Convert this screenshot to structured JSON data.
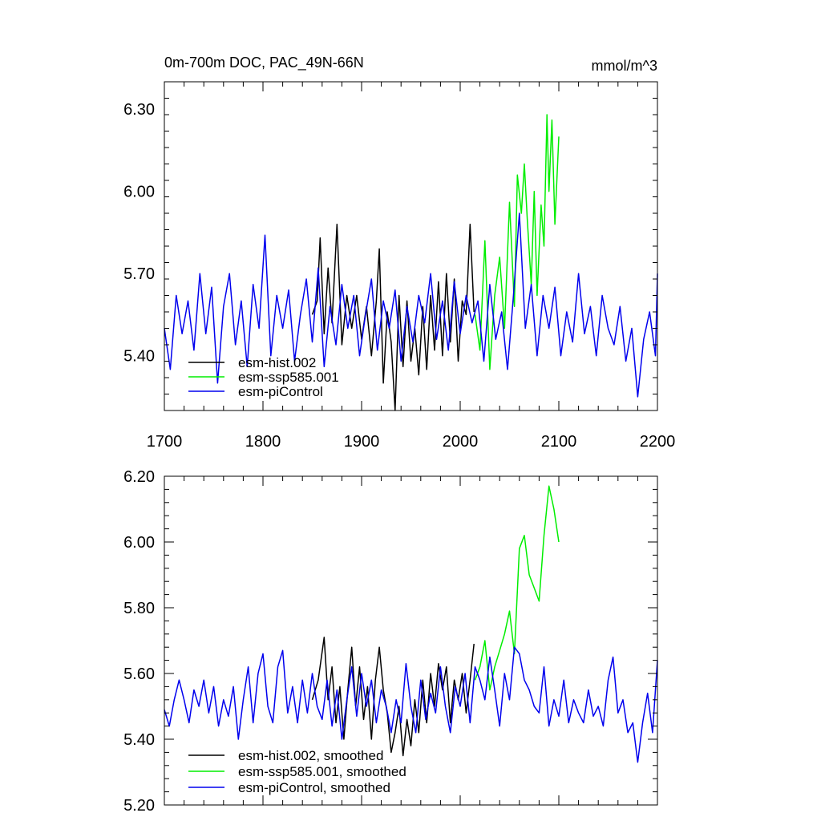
{
  "chart_data": [
    {
      "type": "line",
      "title_left": "0m-700m DOC, PAC_49N-66N",
      "title_right": "mmol/m^3",
      "xlim": [
        1700,
        2200
      ],
      "ylim": [
        5.2,
        6.4
      ],
      "x_ticks": [
        {
          "value": 1700,
          "label": "1700"
        },
        {
          "value": 1800,
          "label": "1800"
        },
        {
          "value": 1900,
          "label": "1900"
        },
        {
          "value": 2000,
          "label": "2000"
        },
        {
          "value": 2100,
          "label": "2100"
        },
        {
          "value": 2200,
          "label": "2200"
        }
      ],
      "y_ticks": [
        {
          "value": 5.4,
          "label": "5.40"
        },
        {
          "value": 5.7,
          "label": "5.70"
        },
        {
          "value": 6.0,
          "label": "6.00"
        },
        {
          "value": 6.3,
          "label": "6.30"
        }
      ],
      "legend_position": "bottom-left",
      "series": [
        {
          "name": "esm-hist.002",
          "color": "#000000",
          "x": [
            1850,
            1855,
            1858,
            1862,
            1866,
            1870,
            1875,
            1880,
            1885,
            1890,
            1895,
            1900,
            1905,
            1910,
            1915,
            1918,
            1922,
            1926,
            1930,
            1934,
            1938,
            1942,
            1946,
            1950,
            1954,
            1958,
            1962,
            1966,
            1970,
            1974,
            1978,
            1982,
            1986,
            1990,
            1994,
            1998,
            2002,
            2006,
            2010,
            2014
          ],
          "y": [
            5.55,
            5.6,
            5.83,
            5.48,
            5.72,
            5.52,
            5.88,
            5.44,
            5.62,
            5.5,
            5.62,
            5.46,
            5.58,
            5.4,
            5.6,
            5.79,
            5.3,
            5.56,
            5.45,
            5.2,
            5.62,
            5.36,
            5.6,
            5.38,
            5.5,
            5.33,
            5.58,
            5.35,
            5.62,
            5.42,
            5.67,
            5.4,
            5.7,
            5.45,
            5.68,
            5.38,
            5.6,
            5.55,
            5.88,
            5.56
          ]
        },
        {
          "name": "esm-ssp585.001",
          "color": "#00ee00",
          "x": [
            2015,
            2020,
            2025,
            2030,
            2035,
            2040,
            2045,
            2050,
            2055,
            2058,
            2062,
            2065,
            2068,
            2072,
            2075,
            2078,
            2082,
            2085,
            2088,
            2090,
            2093,
            2096,
            2100
          ],
          "y": [
            5.55,
            5.42,
            5.82,
            5.35,
            5.62,
            5.76,
            5.5,
            5.96,
            5.58,
            6.06,
            5.92,
            6.1,
            5.9,
            5.66,
            6.0,
            5.62,
            5.95,
            5.8,
            6.28,
            6.0,
            6.26,
            5.88,
            6.2
          ]
        },
        {
          "name": "esm-piControl",
          "color": "#0000ee",
          "x": [
            1700,
            1706,
            1712,
            1718,
            1724,
            1730,
            1736,
            1742,
            1748,
            1754,
            1760,
            1766,
            1772,
            1778,
            1784,
            1790,
            1796,
            1802,
            1808,
            1814,
            1820,
            1826,
            1832,
            1838,
            1844,
            1850,
            1856,
            1862,
            1868,
            1874,
            1880,
            1886,
            1892,
            1898,
            1904,
            1910,
            1916,
            1922,
            1928,
            1934,
            1940,
            1946,
            1952,
            1958,
            1964,
            1970,
            1976,
            1982,
            1988,
            1994,
            2000,
            2006,
            2012,
            2018,
            2024,
            2030,
            2036,
            2042,
            2048,
            2054,
            2060,
            2066,
            2072,
            2078,
            2084,
            2090,
            2096,
            2102,
            2108,
            2114,
            2120,
            2126,
            2132,
            2138,
            2144,
            2150,
            2156,
            2162,
            2168,
            2174,
            2180,
            2186,
            2192,
            2198,
            2200
          ],
          "y": [
            5.5,
            5.35,
            5.62,
            5.48,
            5.6,
            5.42,
            5.7,
            5.48,
            5.65,
            5.3,
            5.58,
            5.7,
            5.44,
            5.6,
            5.36,
            5.66,
            5.5,
            5.84,
            5.4,
            5.62,
            5.5,
            5.64,
            5.38,
            5.55,
            5.68,
            5.45,
            5.72,
            5.36,
            5.58,
            5.44,
            5.66,
            5.5,
            5.62,
            5.4,
            5.55,
            5.68,
            5.42,
            5.6,
            5.5,
            5.64,
            5.38,
            5.58,
            5.45,
            5.62,
            5.52,
            5.7,
            5.46,
            5.6,
            5.42,
            5.67,
            5.48,
            5.62,
            5.52,
            5.6,
            5.38,
            5.66,
            5.46,
            5.56,
            5.35,
            5.62,
            5.92,
            5.5,
            5.66,
            5.4,
            5.62,
            5.5,
            5.65,
            5.4,
            5.56,
            5.45,
            5.7,
            5.48,
            5.58,
            5.4,
            5.62,
            5.5,
            5.44,
            5.58,
            5.38,
            5.5,
            5.25,
            5.46,
            5.56,
            5.4,
            5.7
          ]
        }
      ]
    },
    {
      "type": "line",
      "xlim": [
        1700,
        2200
      ],
      "ylim": [
        5.2,
        6.2
      ],
      "y_ticks": [
        {
          "value": 5.2,
          "label": "5.20"
        },
        {
          "value": 5.4,
          "label": "5.40"
        },
        {
          "value": 5.6,
          "label": "5.60"
        },
        {
          "value": 5.8,
          "label": "5.80"
        },
        {
          "value": 6.0,
          "label": "6.00"
        },
        {
          "value": 6.2,
          "label": "6.20"
        }
      ],
      "legend_position": "bottom-left",
      "series": [
        {
          "name": "esm-hist.002, smoothed",
          "color": "#000000",
          "x": [
            1850,
            1856,
            1862,
            1866,
            1870,
            1874,
            1878,
            1882,
            1886,
            1890,
            1894,
            1898,
            1902,
            1906,
            1910,
            1914,
            1918,
            1922,
            1926,
            1930,
            1934,
            1938,
            1942,
            1946,
            1950,
            1954,
            1958,
            1962,
            1966,
            1970,
            1974,
            1978,
            1982,
            1986,
            1990,
            1994,
            1998,
            2002,
            2006,
            2010,
            2014
          ],
          "y": [
            5.52,
            5.58,
            5.71,
            5.52,
            5.62,
            5.45,
            5.56,
            5.4,
            5.55,
            5.68,
            5.5,
            5.62,
            5.46,
            5.56,
            5.4,
            5.58,
            5.68,
            5.55,
            5.48,
            5.36,
            5.42,
            5.5,
            5.35,
            5.46,
            5.38,
            5.52,
            5.42,
            5.58,
            5.45,
            5.6,
            5.5,
            5.63,
            5.55,
            5.62,
            5.45,
            5.58,
            5.52,
            5.6,
            5.48,
            5.58,
            5.69
          ]
        },
        {
          "name": "esm-ssp585.001, smoothed",
          "color": "#00ee00",
          "x": [
            2015,
            2020,
            2025,
            2030,
            2035,
            2040,
            2045,
            2050,
            2055,
            2060,
            2065,
            2070,
            2075,
            2080,
            2085,
            2090,
            2095,
            2100
          ],
          "y": [
            5.58,
            5.62,
            5.7,
            5.55,
            5.62,
            5.67,
            5.72,
            5.79,
            5.66,
            5.98,
            6.02,
            5.9,
            5.86,
            5.82,
            6.02,
            6.17,
            6.1,
            6.0
          ]
        },
        {
          "name": "esm-piControl, smoothed",
          "color": "#0000ee",
          "x": [
            1700,
            1705,
            1710,
            1715,
            1720,
            1725,
            1730,
            1735,
            1740,
            1745,
            1750,
            1755,
            1760,
            1765,
            1770,
            1775,
            1780,
            1785,
            1790,
            1795,
            1800,
            1805,
            1810,
            1815,
            1820,
            1825,
            1830,
            1835,
            1840,
            1845,
            1850,
            1855,
            1860,
            1865,
            1870,
            1875,
            1880,
            1885,
            1890,
            1895,
            1900,
            1905,
            1910,
            1915,
            1920,
            1925,
            1930,
            1935,
            1940,
            1945,
            1950,
            1955,
            1960,
            1965,
            1970,
            1975,
            1980,
            1985,
            1990,
            1995,
            2000,
            2005,
            2010,
            2015,
            2020,
            2025,
            2030,
            2035,
            2040,
            2045,
            2050,
            2055,
            2060,
            2065,
            2070,
            2075,
            2080,
            2085,
            2090,
            2095,
            2100,
            2105,
            2110,
            2115,
            2120,
            2125,
            2130,
            2135,
            2140,
            2145,
            2150,
            2155,
            2160,
            2165,
            2170,
            2175,
            2180,
            2185,
            2190,
            2195,
            2200
          ],
          "y": [
            5.49,
            5.44,
            5.52,
            5.58,
            5.52,
            5.45,
            5.55,
            5.5,
            5.58,
            5.48,
            5.56,
            5.44,
            5.52,
            5.47,
            5.56,
            5.4,
            5.52,
            5.62,
            5.45,
            5.6,
            5.66,
            5.5,
            5.45,
            5.62,
            5.67,
            5.48,
            5.56,
            5.45,
            5.58,
            5.48,
            5.6,
            5.5,
            5.46,
            5.58,
            5.44,
            5.55,
            5.4,
            5.52,
            5.62,
            5.47,
            5.6,
            5.5,
            5.58,
            5.45,
            5.55,
            5.5,
            5.42,
            5.52,
            5.45,
            5.63,
            5.5,
            5.42,
            5.58,
            5.46,
            5.54,
            5.48,
            5.62,
            5.5,
            5.42,
            5.56,
            5.5,
            5.6,
            5.45,
            5.62,
            5.58,
            5.52,
            5.65,
            5.55,
            5.44,
            5.6,
            5.52,
            5.68,
            5.66,
            5.58,
            5.55,
            5.5,
            5.48,
            5.62,
            5.44,
            5.52,
            5.47,
            5.58,
            5.45,
            5.52,
            5.48,
            5.45,
            5.55,
            5.47,
            5.5,
            5.44,
            5.58,
            5.65,
            5.48,
            5.52,
            5.42,
            5.45,
            5.33,
            5.45,
            5.54,
            5.42,
            5.64
          ]
        }
      ]
    }
  ]
}
